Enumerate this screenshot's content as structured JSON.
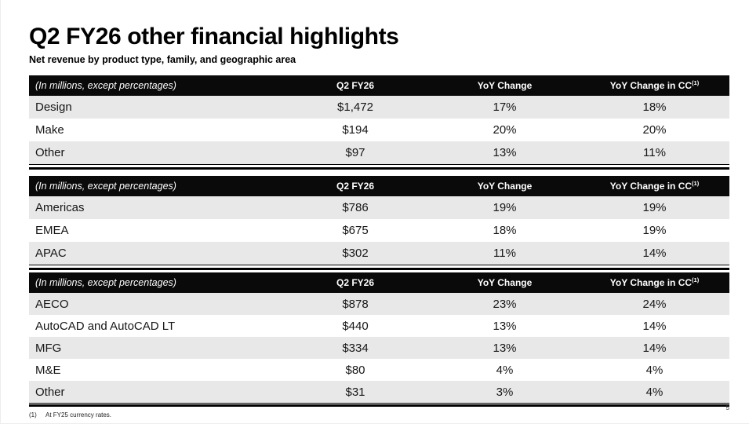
{
  "slide": {
    "title": "Q2 FY26 other financial highlights",
    "subtitle": "Net revenue by product type, family, and geographic area",
    "footnote_marker": "(1)",
    "footnote_text": "At FY25 currency rates.",
    "page_number": "5"
  },
  "colors": {
    "header_bg": "#0a0a0a",
    "header_text": "#ffffff",
    "row_stripe_bg": "#e8e8e8",
    "body_text": "#161616"
  },
  "table_header": {
    "col1": "(In millions, except percentages)",
    "col2": "Q2 FY26",
    "col3": "YoY Change",
    "col4_base": "YoY Change in CC",
    "col4_sup": "(1)"
  },
  "tables": [
    {
      "name": "net revenue by product type",
      "rows": [
        {
          "label": "Design",
          "q2fy26": "$1,472",
          "yoy": "17%",
          "yoy_cc": "18%"
        },
        {
          "label": "Make",
          "q2fy26": "$194",
          "yoy": "20%",
          "yoy_cc": "20%"
        },
        {
          "label": "Other",
          "q2fy26": "$97",
          "yoy": "13%",
          "yoy_cc": "11%"
        }
      ]
    },
    {
      "name": "net revenue by geographic area",
      "rows": [
        {
          "label": "Americas",
          "q2fy26": "$786",
          "yoy": "19%",
          "yoy_cc": "19%"
        },
        {
          "label": "EMEA",
          "q2fy26": "$675",
          "yoy": "18%",
          "yoy_cc": "19%"
        },
        {
          "label": "APAC",
          "q2fy26": "$302",
          "yoy": "11%",
          "yoy_cc": "14%"
        }
      ]
    },
    {
      "name": "net revenue by product family",
      "rows": [
        {
          "label": "AECO",
          "q2fy26": "$878",
          "yoy": "23%",
          "yoy_cc": "24%"
        },
        {
          "label": "AutoCAD and AutoCAD LT",
          "q2fy26": "$440",
          "yoy": "13%",
          "yoy_cc": "14%"
        },
        {
          "label": "MFG",
          "q2fy26": "$334",
          "yoy": "13%",
          "yoy_cc": "14%"
        },
        {
          "label": "M&E",
          "q2fy26": "$80",
          "yoy": "4%",
          "yoy_cc": "4%"
        },
        {
          "label": "Other",
          "q2fy26": "$31",
          "yoy": "3%",
          "yoy_cc": "4%"
        }
      ]
    }
  ]
}
